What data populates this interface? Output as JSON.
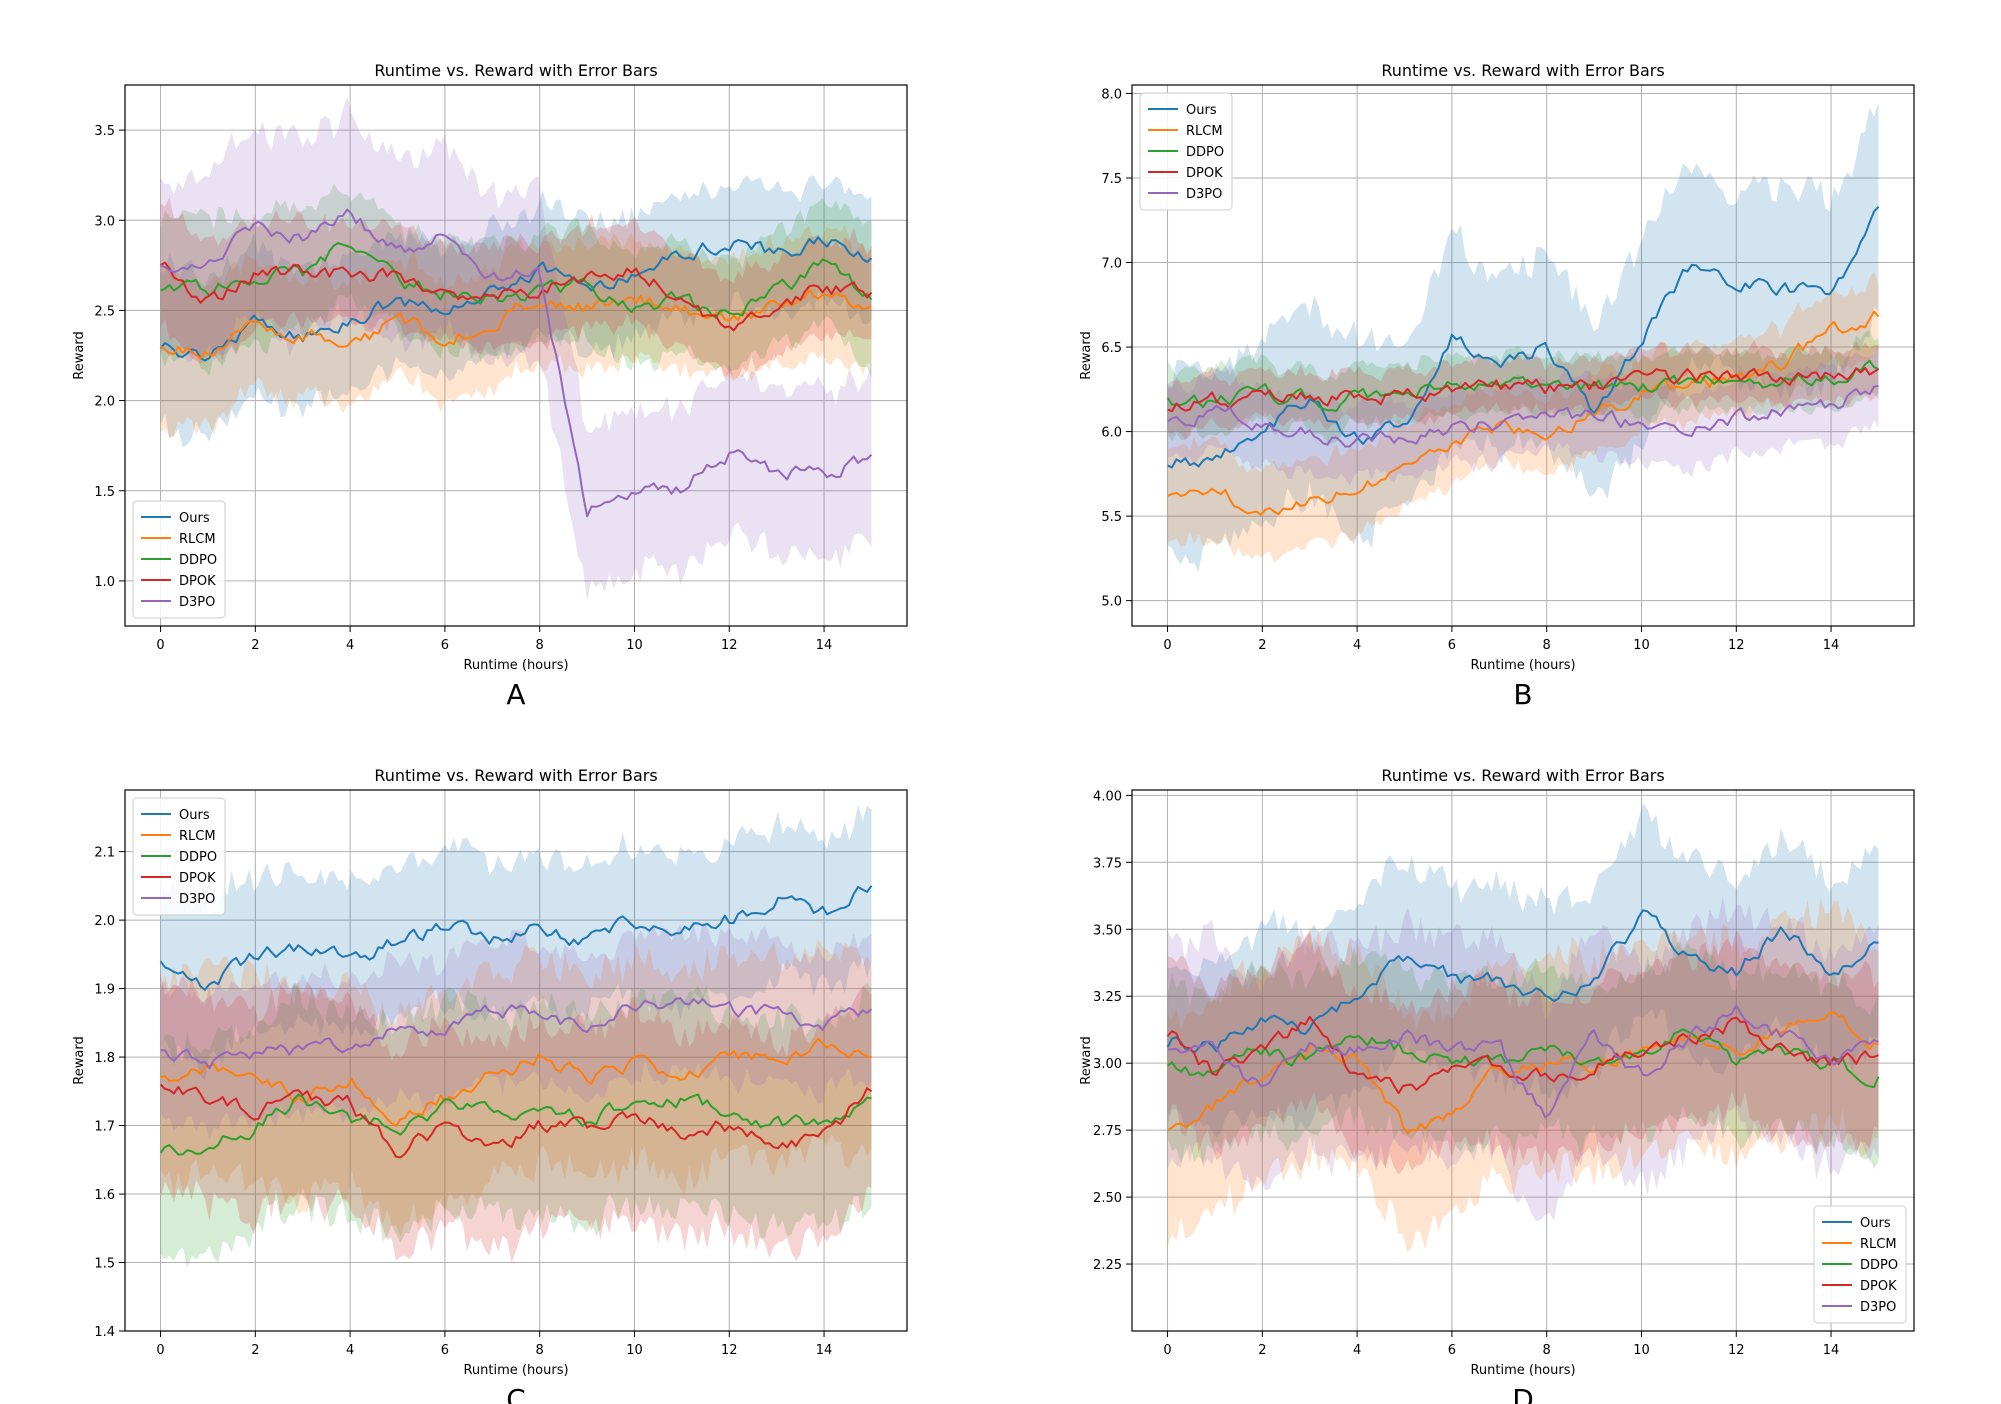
{
  "chart_data": [
    {
      "panel": "A",
      "type": "line",
      "title": "Runtime vs. Reward with Error Bars",
      "xlabel": "Runtime (hours)",
      "ylabel": "Reward",
      "xlim": [
        -0.75,
        15.75
      ],
      "ylim": [
        0.75,
        3.75
      ],
      "xticks": [
        0,
        2,
        4,
        6,
        8,
        10,
        12,
        14
      ],
      "yticks": [
        1.0,
        1.5,
        2.0,
        2.5,
        3.0,
        3.5
      ],
      "ytick_labels": [
        "1.0",
        "1.5",
        "2.0",
        "2.5",
        "3.0",
        "3.5"
      ],
      "grid": true,
      "legend_position": "lower-left",
      "panel_label": "A",
      "x": [
        0,
        1,
        2,
        3,
        4,
        5,
        6,
        7,
        8,
        9,
        10,
        11,
        12,
        13,
        14,
        15
      ],
      "series": [
        {
          "name": "Ours",
          "values": [
            2.29,
            2.26,
            2.43,
            2.36,
            2.44,
            2.55,
            2.48,
            2.62,
            2.73,
            2.63,
            2.71,
            2.83,
            2.88,
            2.82,
            2.88,
            2.79
          ],
          "err": [
            0.45,
            0.45,
            0.4,
            0.38,
            0.37,
            0.36,
            0.35,
            0.36,
            0.35,
            0.36,
            0.34,
            0.34,
            0.33,
            0.33,
            0.33,
            0.33
          ]
        },
        {
          "name": "RLCM",
          "values": [
            2.3,
            2.28,
            2.4,
            2.38,
            2.29,
            2.44,
            2.35,
            2.43,
            2.56,
            2.5,
            2.57,
            2.5,
            2.47,
            2.53,
            2.61,
            2.52
          ],
          "err": [
            0.45,
            0.42,
            0.34,
            0.33,
            0.33,
            0.33,
            0.33,
            0.33,
            0.33,
            0.33,
            0.33,
            0.33,
            0.33,
            0.33,
            0.35,
            0.35
          ]
        },
        {
          "name": "DDPO",
          "values": [
            2.61,
            2.62,
            2.71,
            2.7,
            2.91,
            2.66,
            2.6,
            2.55,
            2.61,
            2.64,
            2.5,
            2.57,
            2.47,
            2.59,
            2.76,
            2.56
          ],
          "err": [
            0.4,
            0.4,
            0.35,
            0.35,
            0.3,
            0.3,
            0.3,
            0.3,
            0.3,
            0.3,
            0.3,
            0.3,
            0.3,
            0.3,
            0.35,
            0.4
          ]
        },
        {
          "name": "DPOK",
          "values": [
            2.75,
            2.55,
            2.69,
            2.72,
            2.69,
            2.7,
            2.58,
            2.61,
            2.61,
            2.69,
            2.74,
            2.55,
            2.4,
            2.55,
            2.62,
            2.6
          ],
          "err": [
            0.35,
            0.32,
            0.3,
            0.28,
            0.28,
            0.27,
            0.27,
            0.27,
            0.28,
            0.28,
            0.27,
            0.27,
            0.27,
            0.27,
            0.27,
            0.27
          ]
        },
        {
          "name": "D3PO",
          "values": [
            2.75,
            2.78,
            2.97,
            2.91,
            3.03,
            2.83,
            2.9,
            2.68,
            2.71,
            1.4,
            1.46,
            1.52,
            1.7,
            1.59,
            1.6,
            1.7
          ],
          "err": [
            0.45,
            0.5,
            0.55,
            0.55,
            0.55,
            0.5,
            0.5,
            0.45,
            0.45,
            0.45,
            0.45,
            0.45,
            0.45,
            0.45,
            0.45,
            0.45
          ]
        }
      ]
    },
    {
      "panel": "B",
      "type": "line",
      "title": "Runtime vs. Reward with Error Bars",
      "xlabel": "Runtime (hours)",
      "ylabel": "Reward",
      "xlim": [
        -0.75,
        15.75
      ],
      "ylim": [
        4.85,
        8.05
      ],
      "xticks": [
        0,
        2,
        4,
        6,
        8,
        10,
        12,
        14
      ],
      "yticks": [
        5.0,
        5.5,
        6.0,
        6.5,
        7.0,
        7.5,
        8.0
      ],
      "ytick_labels": [
        "5.0",
        "5.5",
        "6.0",
        "6.5",
        "7.0",
        "7.5",
        "8.0"
      ],
      "grid": true,
      "legend_position": "upper-left",
      "panel_label": "B",
      "x": [
        0,
        1,
        2,
        3,
        4,
        5,
        6,
        7,
        8,
        9,
        10,
        11,
        12,
        13,
        14,
        15
      ],
      "series": [
        {
          "name": "Ours",
          "values": [
            5.8,
            5.85,
            6.02,
            6.2,
            5.95,
            6.05,
            6.55,
            6.4,
            6.5,
            6.1,
            6.55,
            6.95,
            6.9,
            6.85,
            6.8,
            7.33
          ],
          "err": [
            0.55,
            0.55,
            0.55,
            0.55,
            0.6,
            0.5,
            0.6,
            0.5,
            0.55,
            0.5,
            0.6,
            0.6,
            0.55,
            0.6,
            0.55,
            0.6
          ]
        },
        {
          "name": "RLCM",
          "values": [
            5.62,
            5.63,
            5.55,
            5.62,
            5.65,
            5.82,
            5.95,
            6.02,
            6.0,
            6.12,
            6.22,
            6.28,
            6.32,
            6.4,
            6.6,
            6.68
          ],
          "err": [
            0.28,
            0.28,
            0.28,
            0.25,
            0.25,
            0.25,
            0.23,
            0.22,
            0.22,
            0.22,
            0.22,
            0.22,
            0.22,
            0.22,
            0.22,
            0.22
          ]
        },
        {
          "name": "DDPO",
          "values": [
            6.2,
            6.2,
            6.22,
            6.18,
            6.2,
            6.22,
            6.27,
            6.27,
            6.25,
            6.27,
            6.28,
            6.3,
            6.3,
            6.3,
            6.33,
            6.37
          ],
          "err": [
            0.2,
            0.19,
            0.18,
            0.18,
            0.17,
            0.17,
            0.17,
            0.17,
            0.17,
            0.17,
            0.17,
            0.17,
            0.17,
            0.17,
            0.17,
            0.17
          ]
        },
        {
          "name": "DPOK",
          "values": [
            6.13,
            6.18,
            6.22,
            6.2,
            6.2,
            6.22,
            6.25,
            6.27,
            6.25,
            6.28,
            6.3,
            6.32,
            6.32,
            6.3,
            6.33,
            6.37
          ],
          "err": [
            0.15,
            0.15,
            0.15,
            0.15,
            0.15,
            0.15,
            0.15,
            0.15,
            0.15,
            0.15,
            0.15,
            0.15,
            0.15,
            0.15,
            0.15,
            0.15
          ]
        },
        {
          "name": "D3PO",
          "values": [
            6.06,
            6.12,
            6.05,
            6.0,
            5.95,
            5.98,
            6.02,
            6.05,
            6.1,
            6.08,
            6.05,
            6.02,
            6.08,
            6.12,
            6.15,
            6.27
          ],
          "err": [
            0.22,
            0.22,
            0.22,
            0.22,
            0.22,
            0.22,
            0.22,
            0.22,
            0.22,
            0.22,
            0.22,
            0.22,
            0.22,
            0.22,
            0.22,
            0.22
          ]
        }
      ]
    },
    {
      "panel": "C",
      "type": "line",
      "title": "Runtime vs. Reward with Error Bars",
      "xlabel": "Runtime (hours)",
      "ylabel": "Reward",
      "xlim": [
        -0.75,
        15.75
      ],
      "ylim": [
        1.4,
        2.19
      ],
      "xticks": [
        0,
        2,
        4,
        6,
        8,
        10,
        12,
        14
      ],
      "yticks": [
        1.4,
        1.5,
        1.6,
        1.7,
        1.8,
        1.9,
        2.0,
        2.1
      ],
      "ytick_labels": [
        "1.4",
        "1.5",
        "1.6",
        "1.7",
        "1.8",
        "1.9",
        "2.0",
        "2.1"
      ],
      "grid": true,
      "legend_position": "upper-left",
      "panel_label": "C",
      "x": [
        0,
        1,
        2,
        3,
        4,
        5,
        6,
        7,
        8,
        9,
        10,
        11,
        12,
        13,
        14,
        15
      ],
      "series": [
        {
          "name": "Ours",
          "values": [
            1.94,
            1.9,
            1.95,
            1.96,
            1.94,
            1.97,
            1.99,
            1.97,
            1.99,
            1.97,
            2.0,
            1.99,
            2.0,
            2.03,
            2.01,
            2.05
          ],
          "err": [
            0.12,
            0.12,
            0.11,
            0.11,
            0.11,
            0.11,
            0.11,
            0.11,
            0.11,
            0.11,
            0.11,
            0.11,
            0.11,
            0.11,
            0.11,
            0.11
          ]
        },
        {
          "name": "RLCM",
          "values": [
            1.77,
            1.78,
            1.76,
            1.74,
            1.77,
            1.71,
            1.74,
            1.77,
            1.8,
            1.77,
            1.79,
            1.76,
            1.8,
            1.79,
            1.82,
            1.8
          ],
          "err": [
            0.15,
            0.15,
            0.15,
            0.15,
            0.15,
            0.15,
            0.15,
            0.15,
            0.15,
            0.15,
            0.15,
            0.15,
            0.15,
            0.15,
            0.15,
            0.15
          ]
        },
        {
          "name": "DDPO",
          "values": [
            1.66,
            1.67,
            1.7,
            1.74,
            1.71,
            1.7,
            1.73,
            1.73,
            1.72,
            1.71,
            1.73,
            1.74,
            1.72,
            1.7,
            1.71,
            1.74
          ],
          "err": [
            0.15,
            0.15,
            0.15,
            0.15,
            0.15,
            0.15,
            0.15,
            0.15,
            0.15,
            0.15,
            0.15,
            0.15,
            0.15,
            0.15,
            0.15,
            0.15
          ]
        },
        {
          "name": "DPOK",
          "values": [
            1.76,
            1.74,
            1.72,
            1.74,
            1.73,
            1.66,
            1.7,
            1.67,
            1.7,
            1.7,
            1.72,
            1.69,
            1.7,
            1.67,
            1.69,
            1.75
          ],
          "err": [
            0.15,
            0.15,
            0.15,
            0.15,
            0.15,
            0.15,
            0.15,
            0.15,
            0.15,
            0.15,
            0.15,
            0.15,
            0.15,
            0.15,
            0.15,
            0.15
          ]
        },
        {
          "name": "D3PO",
          "values": [
            1.81,
            1.79,
            1.8,
            1.81,
            1.82,
            1.85,
            1.84,
            1.87,
            1.86,
            1.84,
            1.87,
            1.89,
            1.87,
            1.86,
            1.85,
            1.87
          ],
          "err": [
            0.1,
            0.1,
            0.1,
            0.1,
            0.1,
            0.1,
            0.1,
            0.1,
            0.1,
            0.1,
            0.1,
            0.1,
            0.1,
            0.1,
            0.1,
            0.1
          ]
        }
      ]
    },
    {
      "panel": "D",
      "type": "line",
      "title": "Runtime vs. Reward with Error Bars",
      "xlabel": "Runtime (hours)",
      "ylabel": "Reward",
      "xlim": [
        -0.75,
        15.75
      ],
      "ylim": [
        2.0,
        4.02
      ],
      "xticks": [
        0,
        2,
        4,
        6,
        8,
        10,
        12,
        14
      ],
      "yticks": [
        2.25,
        2.5,
        2.75,
        3.0,
        3.25,
        3.5,
        3.75,
        4.0
      ],
      "ytick_labels": [
        "2.25",
        "2.50",
        "2.75",
        "3.00",
        "3.25",
        "3.50",
        "3.75",
        "4.00"
      ],
      "grid": true,
      "legend_position": "lower-right",
      "panel_label": "D",
      "x": [
        0,
        1,
        2,
        3,
        4,
        5,
        6,
        7,
        8,
        9,
        10,
        11,
        12,
        13,
        14,
        15
      ],
      "series": [
        {
          "name": "Ours",
          "values": [
            3.06,
            3.05,
            3.18,
            3.12,
            3.25,
            3.38,
            3.32,
            3.3,
            3.25,
            3.3,
            3.55,
            3.4,
            3.35,
            3.5,
            3.35,
            3.45
          ],
          "err": [
            0.3,
            0.3,
            0.35,
            0.35,
            0.35,
            0.35,
            0.35,
            0.35,
            0.35,
            0.35,
            0.35,
            0.35,
            0.35,
            0.35,
            0.35,
            0.35
          ]
        },
        {
          "name": "RLCM",
          "values": [
            2.75,
            2.85,
            2.95,
            3.05,
            3.0,
            2.75,
            2.8,
            2.98,
            3.0,
            3.0,
            3.05,
            3.1,
            3.05,
            3.12,
            3.2,
            3.07
          ],
          "err": [
            0.4,
            0.4,
            0.4,
            0.4,
            0.4,
            0.4,
            0.4,
            0.4,
            0.4,
            0.4,
            0.4,
            0.4,
            0.4,
            0.4,
            0.4,
            0.4
          ]
        },
        {
          "name": "DDPO",
          "values": [
            2.99,
            2.95,
            3.05,
            3.0,
            3.1,
            3.05,
            3.0,
            3.0,
            3.05,
            3.0,
            3.05,
            3.15,
            3.0,
            3.05,
            3.0,
            2.95
          ],
          "err": [
            0.3,
            0.3,
            0.3,
            0.3,
            0.3,
            0.3,
            0.3,
            0.3,
            0.3,
            0.3,
            0.3,
            0.3,
            0.3,
            0.3,
            0.3,
            0.3
          ]
        },
        {
          "name": "DPOK",
          "values": [
            3.1,
            2.95,
            3.05,
            3.15,
            2.95,
            2.9,
            2.95,
            3.0,
            2.95,
            3.0,
            3.05,
            3.1,
            3.15,
            3.05,
            3.0,
            3.03
          ],
          "err": [
            0.3,
            0.3,
            0.3,
            0.3,
            0.3,
            0.3,
            0.3,
            0.3,
            0.3,
            0.3,
            0.3,
            0.3,
            0.3,
            0.3,
            0.3,
            0.3
          ]
        },
        {
          "name": "D3PO",
          "values": [
            3.05,
            3.05,
            2.9,
            3.05,
            3.05,
            3.1,
            3.05,
            3.05,
            2.8,
            3.1,
            2.95,
            3.1,
            3.2,
            3.1,
            3.0,
            3.08
          ],
          "err": [
            0.4,
            0.4,
            0.4,
            0.4,
            0.4,
            0.4,
            0.4,
            0.4,
            0.4,
            0.4,
            0.4,
            0.4,
            0.4,
            0.4,
            0.4,
            0.4
          ]
        }
      ]
    }
  ],
  "series_colors": {
    "Ours": "#1f77b4",
    "RLCM": "#ff7f0e",
    "DDPO": "#2ca02c",
    "DPOK": "#d62728",
    "D3PO": "#9467bd"
  }
}
